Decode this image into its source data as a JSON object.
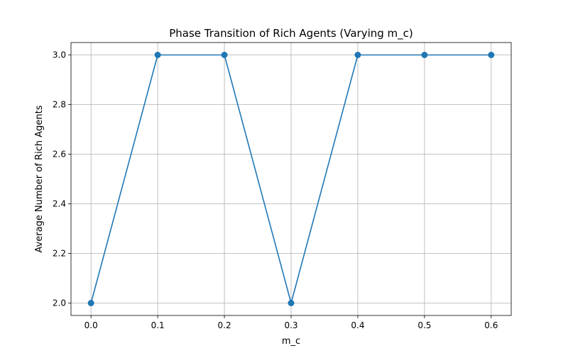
{
  "chart_data": {
    "type": "line",
    "title": "Phase Transition of Rich Agents (Varying m_c)",
    "xlabel": "m_c",
    "ylabel": "Average Number of Rich Agents",
    "x": [
      0.0,
      0.1,
      0.2,
      0.3,
      0.4,
      0.5,
      0.6
    ],
    "series": [
      {
        "values": [
          2.0,
          3.0,
          3.0,
          2.0,
          3.0,
          3.0,
          3.0
        ]
      }
    ],
    "xlim": [
      -0.03,
      0.63
    ],
    "ylim": [
      1.95,
      3.05
    ],
    "xticks": [
      "0.0",
      "0.1",
      "0.2",
      "0.3",
      "0.4",
      "0.5",
      "0.6"
    ],
    "yticks": [
      "2.0",
      "2.2",
      "2.4",
      "2.6",
      "2.8",
      "3.0"
    ],
    "grid": true,
    "line_color": "#1f77b4",
    "marker": "circle"
  }
}
